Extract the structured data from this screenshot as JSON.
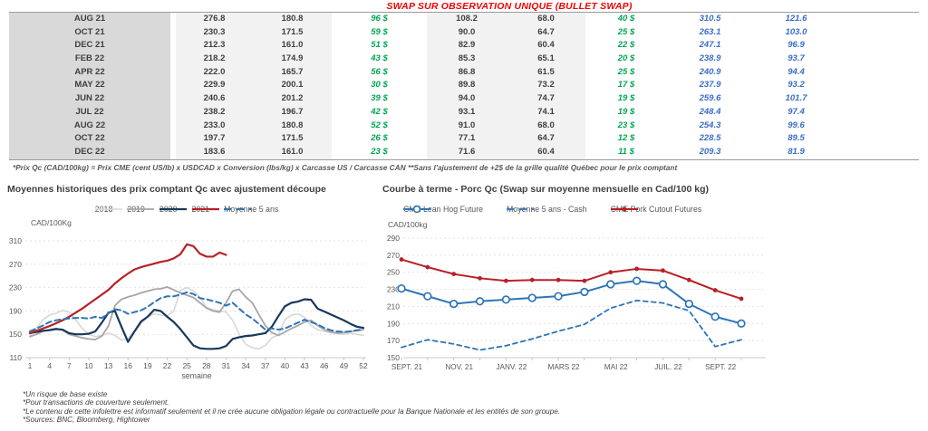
{
  "header": {
    "title": "SWAP SUR OBSERVATION UNIQUE (BULLET SWAP)"
  },
  "colors": {
    "title_red": "#f20000",
    "positive_green": "#00a651",
    "swap_blue": "#3a6cc8",
    "navy_2020": "#17395d",
    "red_2021": "#b82025",
    "steel_blue": "#2e75b6",
    "gray_2019": "#a6a6a6",
    "gray_2018": "#d8d8d8",
    "month_col_gray": "#d9d9d9",
    "band_gray": "#f2f2f2"
  },
  "table": {
    "rows": [
      [
        "AUG 21",
        "276.8",
        "180.8",
        "96 $",
        "108.2",
        "68.0",
        "40 $",
        "310.5",
        "121.6"
      ],
      [
        "OCT 21",
        "230.3",
        "171.5",
        "59 $",
        "90.0",
        "64.7",
        "25 $",
        "263.1",
        "103.0"
      ],
      [
        "DEC 21",
        "212.3",
        "161.0",
        "51 $",
        "82.9",
        "60.4",
        "22 $",
        "247.1",
        "96.9"
      ],
      [
        "FEB 22",
        "218.2",
        "174.9",
        "43 $",
        "85.3",
        "65.1",
        "20 $",
        "238.9",
        "93.7"
      ],
      [
        "APR 22",
        "222.0",
        "165.7",
        "56 $",
        "86.8",
        "61.5",
        "25 $",
        "240.9",
        "94.4"
      ],
      [
        "MAY 22",
        "229.9",
        "200.1",
        "30 $",
        "89.8",
        "73.2",
        "17 $",
        "237.9",
        "93.2"
      ],
      [
        "JUN 22",
        "240.6",
        "201.2",
        "39 $",
        "94.0",
        "74.7",
        "19 $",
        "259.6",
        "101.7"
      ],
      [
        "JUL 22",
        "238.2",
        "196.7",
        "42 $",
        "93.1",
        "74.1",
        "19 $",
        "248.4",
        "97.4"
      ],
      [
        "AUG 22",
        "233.0",
        "180.8",
        "52 $",
        "91.0",
        "68.0",
        "23 $",
        "254.3",
        "99.6"
      ],
      [
        "OCT 22",
        "197.7",
        "171.5",
        "26 $",
        "77.1",
        "64.7",
        "12 $",
        "228.5",
        "89.5"
      ],
      [
        "DEC 22",
        "183.6",
        "161.0",
        "23 $",
        "71.6",
        "60.4",
        "11 $",
        "209.3",
        "81.9"
      ]
    ],
    "footnote": "*Prix Qc (CAD/100kg) = Prix CME (cent US/lb) x USDCAD x Conversion (lbs/kg) x Carcasse US / Carcasse CAN **Sans l'ajustement de +2$ de la grille qualité Québec pour le prix comptant"
  },
  "chart_data": [
    {
      "type": "line",
      "title": "Moyennes historiques des prix comptant Qc avec ajustement découpe",
      "ylabel": "CAD/100Kg",
      "xlabel": "semaine",
      "ylim": [
        110,
        310
      ],
      "yticks": [
        110,
        150,
        190,
        230,
        270,
        310
      ],
      "xlim": [
        1,
        52
      ],
      "xticks": [
        1,
        4,
        7,
        10,
        13,
        16,
        19,
        22,
        25,
        28,
        31,
        34,
        37,
        40,
        43,
        46,
        49,
        52
      ],
      "grid": true,
      "legend_position": "top",
      "series": [
        {
          "name": "2018",
          "color": "#d8d8d8",
          "width": 1.6,
          "values": [
            148,
            160,
            175,
            183,
            186,
            191,
            188,
            175,
            160,
            150,
            146,
            148,
            152,
            148,
            140,
            143,
            155,
            168,
            180,
            185,
            183,
            181,
            190,
            225,
            230,
            224,
            213,
            196,
            192,
            190,
            188,
            174,
            150,
            133,
            127,
            125,
            131,
            144,
            149,
            175,
            183,
            185,
            179,
            165,
            158,
            155,
            153,
            151,
            150,
            152,
            150,
            148
          ]
        },
        {
          "name": "2019",
          "color": "#a6a6a6",
          "width": 1.8,
          "values": [
            146,
            150,
            155,
            158,
            160,
            157,
            150,
            147,
            144,
            142,
            141,
            147,
            164,
            199,
            210,
            214,
            217,
            221,
            224,
            227,
            228,
            231,
            226,
            221,
            217,
            213,
            204,
            195,
            190,
            188,
            204,
            224,
            227,
            214,
            204,
            184,
            165,
            153,
            148,
            154,
            160,
            165,
            171,
            174,
            165,
            158,
            154,
            152,
            153,
            155,
            156,
            158
          ]
        },
        {
          "name": "2020",
          "color": "#17395d",
          "width": 2.2,
          "values": [
            152,
            154,
            156,
            157,
            159,
            158,
            152,
            150,
            150,
            151,
            155,
            170,
            187,
            190,
            163,
            137,
            155,
            172,
            180,
            192,
            190,
            180,
            171,
            159,
            145,
            131,
            126,
            125,
            125,
            126,
            130,
            142,
            145,
            147,
            148,
            150,
            152,
            163,
            181,
            198,
            204,
            206,
            210,
            209,
            194,
            189,
            184,
            179,
            174,
            168,
            163,
            161
          ]
        },
        {
          "name": "2021",
          "color": "#b82025",
          "width": 2.2,
          "values": [
            152,
            156,
            160,
            164,
            169,
            174,
            180,
            187,
            194,
            202,
            210,
            218,
            226,
            237,
            246,
            254,
            261,
            265,
            268,
            271,
            274,
            276,
            280,
            287,
            304,
            301,
            288,
            283,
            283,
            290,
            286,
            null,
            null,
            null,
            null,
            null,
            null,
            null,
            null,
            null,
            null,
            null,
            null,
            null,
            null,
            null,
            null,
            null,
            null,
            null,
            null,
            null
          ]
        },
        {
          "name": "Moyenne 5 ans",
          "color": "#2e75b6",
          "width": 2,
          "dash": "6 4",
          "values": [
            155,
            160,
            165,
            171,
            174,
            176,
            177,
            178,
            178,
            177,
            180,
            178,
            186,
            193,
            191,
            185,
            188,
            191,
            197,
            205,
            212,
            215,
            215,
            218,
            222,
            219,
            212,
            210,
            207,
            204,
            199,
            204,
            194,
            184,
            177,
            168,
            158,
            160,
            158,
            160,
            165,
            170,
            175,
            171,
            167,
            161,
            157,
            155,
            154,
            155,
            157,
            158
          ]
        }
      ]
    },
    {
      "type": "line",
      "title": "Courbe à terme - Porc Qc (Swap sur moyenne mensuelle en Cad/100 kg)",
      "ylabel": "CAD/100kg",
      "xlabel": "",
      "ylim": [
        150,
        290
      ],
      "yticks": [
        150,
        170,
        190,
        210,
        230,
        250,
        270,
        290
      ],
      "categories": [
        "SEPT. 21",
        "OCT. 21",
        "NOV. 21",
        "DEC. 21",
        "JANV. 22",
        "FEVR. 22",
        "MARS 22",
        "AVR. 22",
        "MAI 22",
        "JUIN 22",
        "JUIL. 22",
        "AOUT 22",
        "SEPT. 22",
        "OCT. 22"
      ],
      "xtick_labels": [
        "SEPT. 21",
        "NOV. 21",
        "JANV. 22",
        "MARS 22",
        "MAI 22",
        "JUIL. 22",
        "SEPT. 22"
      ],
      "xtick_indices": [
        0,
        2,
        4,
        6,
        8,
        10,
        12
      ],
      "grid": true,
      "legend_position": "top",
      "series": [
        {
          "name": "CME Lean Hog Future",
          "color": "#2e75b6",
          "width": 2,
          "marker": "circle-open",
          "values": [
            231,
            222,
            213,
            216,
            218,
            220,
            222,
            227,
            236,
            240,
            236,
            213,
            198,
            190
          ]
        },
        {
          "name": "Moyenne 5 ans - Cash",
          "color": "#2e75b6",
          "width": 1.8,
          "dash": "5 4",
          "values": [
            162,
            171,
            166,
            159,
            164,
            172,
            181,
            189,
            208,
            217,
            214,
            205,
            163,
            171
          ]
        },
        {
          "name": "CME Pork Cutout Futures",
          "color": "#b82025",
          "width": 2,
          "marker": "dot",
          "values": [
            265,
            256,
            248,
            243,
            240,
            241,
            241,
            240,
            250,
            254,
            252,
            241,
            229,
            219
          ]
        }
      ]
    }
  ],
  "footer": {
    "lines": [
      "*Un risque de base existe",
      "*Pour transactions de couverture seulement.",
      "*Le contenu de cette infolettre est informatif seulement et il ne crée aucune obligation légale ou contractuelle pour la Banque Nationale et les entités de son groupe.",
      "*Sources: BNC, Bloomberg, Hightower"
    ]
  }
}
